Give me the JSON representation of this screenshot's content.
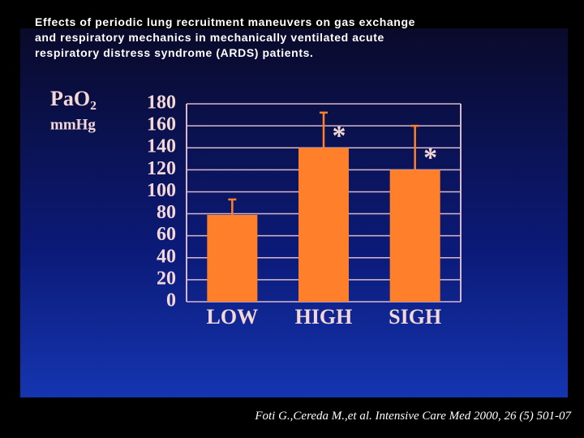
{
  "chart_data": {
    "type": "bar",
    "title": "Effects of periodic lung recruitment maneuvers on gas exchange and respiratory mechanics in mechanically ventilated acute respiratory distress syndrome (ARDS) patients.",
    "y_label": "PaO₂",
    "y_units": "mmHg",
    "categories": [
      "LOW",
      "HIGH",
      "SIGH"
    ],
    "values": [
      79,
      140,
      120
    ],
    "errors": [
      14,
      32,
      40
    ],
    "significance": [
      null,
      "*",
      "*"
    ],
    "color": "#ff7f2a",
    "ylim": [
      0,
      180
    ],
    "yticks": [
      0,
      20,
      40,
      60,
      80,
      100,
      120,
      140,
      160,
      180
    ],
    "grid": true,
    "source": "Foti G.,Cereda M.,et al. Intensive Care Med 2000, 26 (5) 501-07"
  }
}
